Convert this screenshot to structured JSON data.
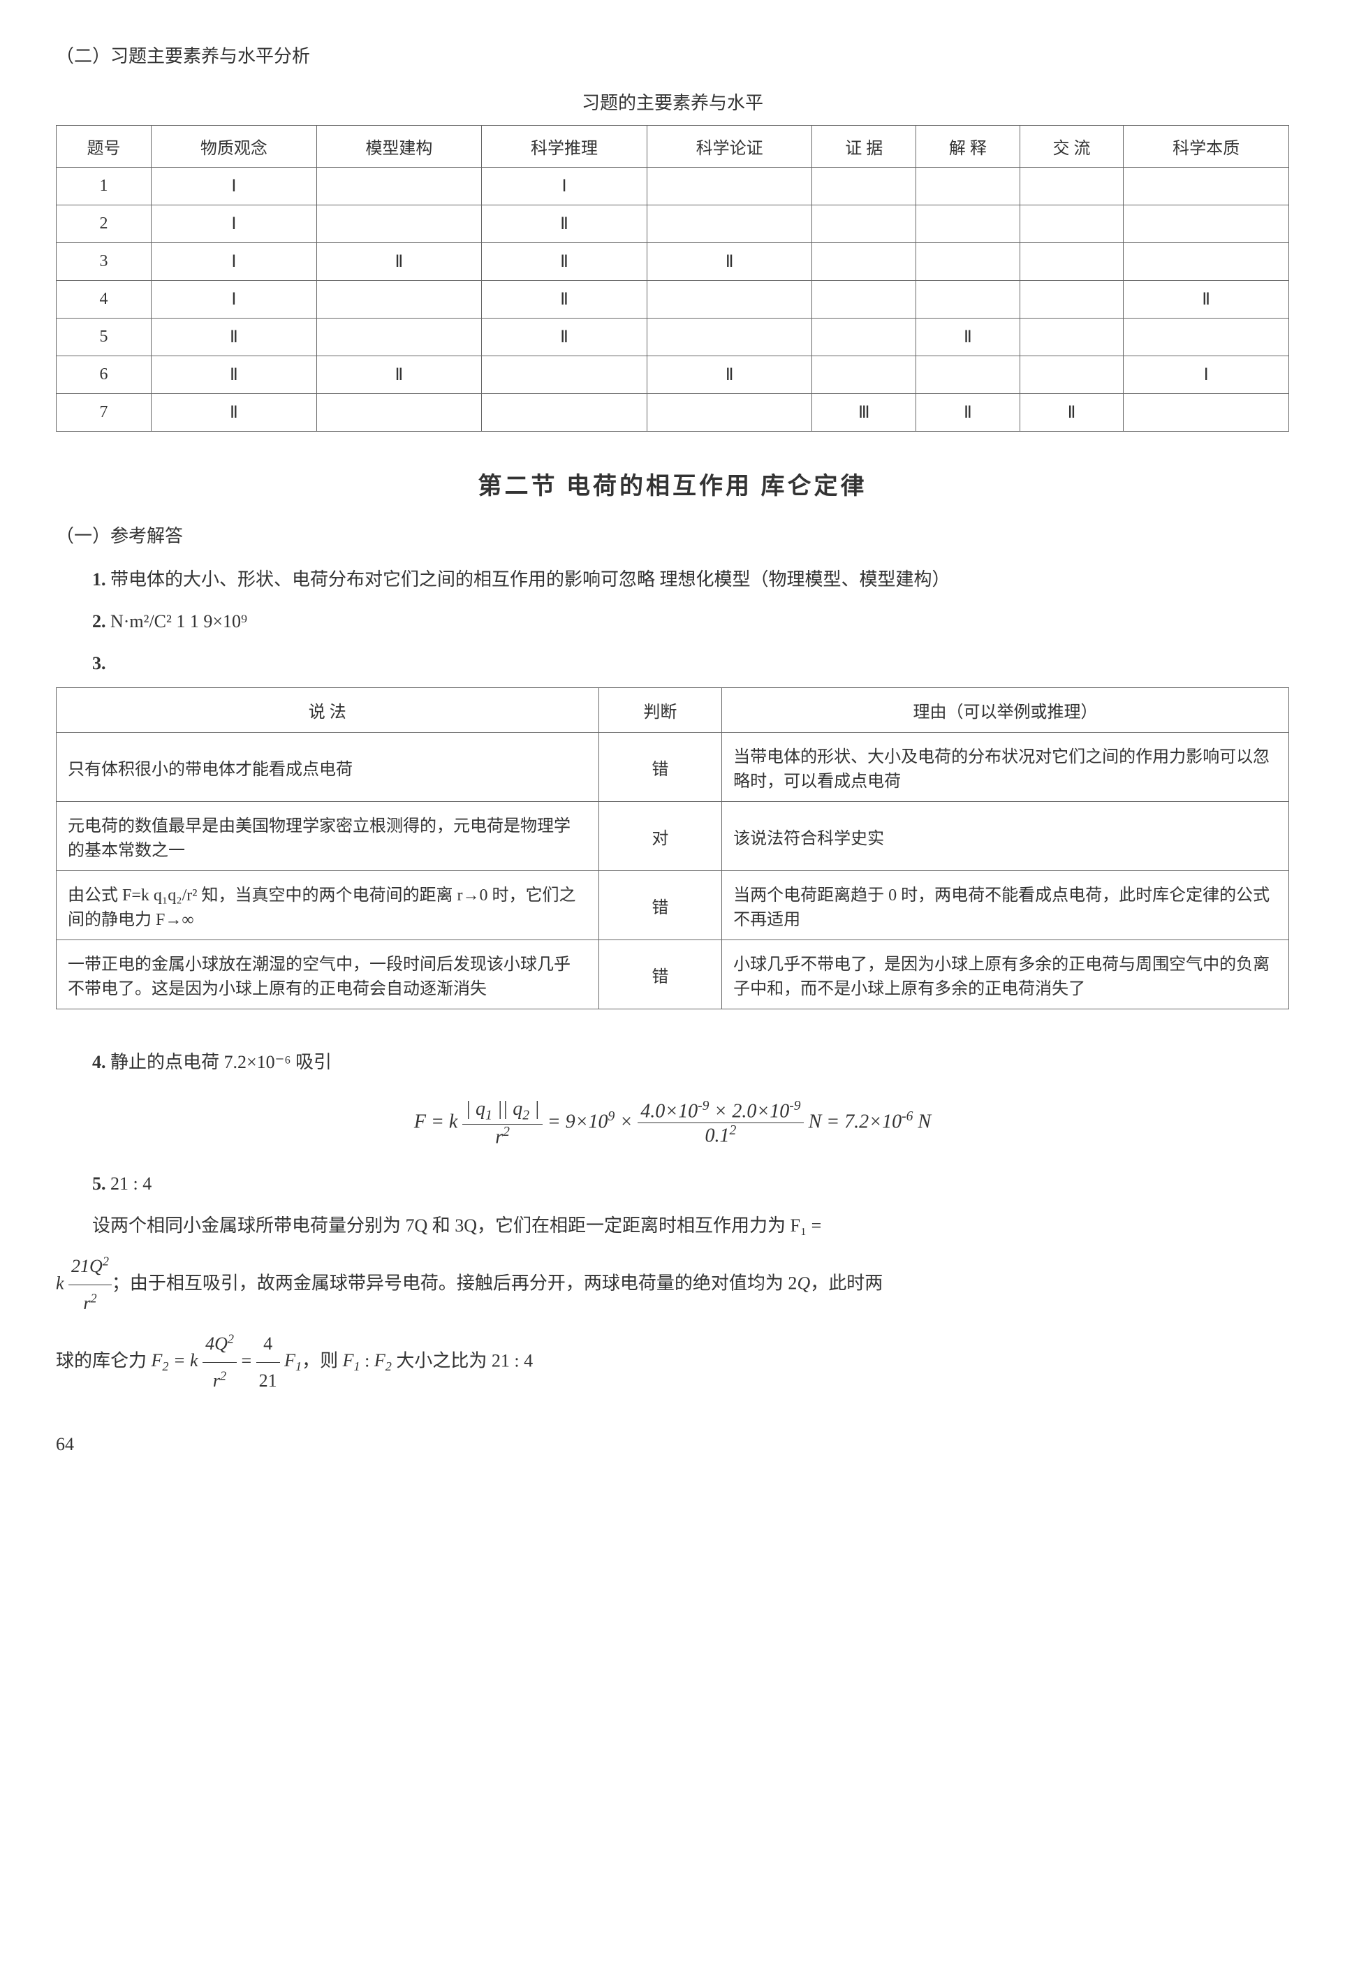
{
  "sectionA": {
    "title": "（二）习题主要素养与水平分析",
    "table_title": "习题的主要素养与水平",
    "headers": [
      "题号",
      "物质观念",
      "模型建构",
      "科学推理",
      "科学论证",
      "证 据",
      "解 释",
      "交 流",
      "科学本质"
    ],
    "rows": [
      [
        "1",
        "Ⅰ",
        "",
        "Ⅰ",
        "",
        "",
        "",
        "",
        ""
      ],
      [
        "2",
        "Ⅰ",
        "",
        "Ⅱ",
        "",
        "",
        "",
        "",
        ""
      ],
      [
        "3",
        "Ⅰ",
        "Ⅱ",
        "Ⅱ",
        "Ⅱ",
        "",
        "",
        "",
        ""
      ],
      [
        "4",
        "Ⅰ",
        "",
        "Ⅱ",
        "",
        "",
        "",
        "",
        "Ⅱ"
      ],
      [
        "5",
        "Ⅱ",
        "",
        "Ⅱ",
        "",
        "",
        "Ⅱ",
        "",
        ""
      ],
      [
        "6",
        "Ⅱ",
        "Ⅱ",
        "",
        "Ⅱ",
        "",
        "",
        "",
        "Ⅰ"
      ],
      [
        "7",
        "Ⅱ",
        "",
        "",
        "",
        "Ⅲ",
        "Ⅱ",
        "Ⅱ",
        ""
      ]
    ],
    "col_widths": [
      "90px",
      "",
      "",
      "",
      "",
      "",
      "",
      "",
      ""
    ]
  },
  "chapter": {
    "title": "第二节  电荷的相互作用  库仑定律"
  },
  "sectionB": {
    "title": "（一）参考解答",
    "q1_num": "1.",
    "q1_text": " 带电体的大小、形状、电荷分布对它们之间的相互作用的影响可忽略  理想化模型（物理模型、模型建构）",
    "q2_num": "2.",
    "q2_text": " N·m²/C²   1   1   9×10⁹",
    "q3_num": "3.",
    "table2": {
      "headers": [
        "说    法",
        "判断",
        "理由（可以举例或推理）"
      ],
      "rows": [
        [
          "只有体积很小的带电体才能看成点电荷",
          "错",
          "当带电体的形状、大小及电荷的分布状况对它们之间的作用力影响可以忽略时，可以看成点电荷"
        ],
        [
          "元电荷的数值最早是由美国物理学家密立根测得的，元电荷是物理学的基本常数之一",
          "对",
          "该说法符合科学史实"
        ],
        [
          "由公式 F=k q₁q₂/r² 知，当真空中的两个电荷间的距离 r→0 时，它们之间的静电力 F→∞",
          "错",
          "当两个电荷距离趋于 0 时，两电荷不能看成点电荷，此时库仑定律的公式不再适用"
        ],
        [
          "一带正电的金属小球放在潮湿的空气中，一段时间后发现该小球几乎不带电了。这是因为小球上原有的正电荷会自动逐渐消失",
          "错",
          "小球几乎不带电了，是因为小球上原有多余的正电荷与周围空气中的负离子中和，而不是小球上原有多余的正电荷消失了"
        ]
      ],
      "col_widths": [
        "44%",
        "10%",
        "46%"
      ]
    },
    "q4_num": "4.",
    "q4_text": " 静止的点电荷  7.2×10⁻⁶  吸引",
    "formula": "F = k |q₁||q₂|/r² = 9×10⁹ × (4.0×10⁻⁹ × 2.0×10⁻⁹)/0.1² N = 7.2×10⁻⁶ N",
    "q5_num": "5.",
    "q5_text": " 21 : 4",
    "q5_body1": "设两个相同小金属球所带电荷量分别为 7Q 和 3Q，它们在相距一定距离时相互作用力为 F₁ =",
    "q5_body2": "k 21Q²/r²；由于相互吸引，故两金属球带异号电荷。接触后再分开，两球电荷量的绝对值均为 2Q，此时两",
    "q5_body3": "球的库仑力 F₂ = k 4Q²/r² = 4/21 F₁，则 F₁ : F₂ 大小之比为 21 : 4"
  },
  "page_number": "64",
  "colors": {
    "text": "#333333",
    "border": "#666666",
    "background": "#ffffff"
  }
}
